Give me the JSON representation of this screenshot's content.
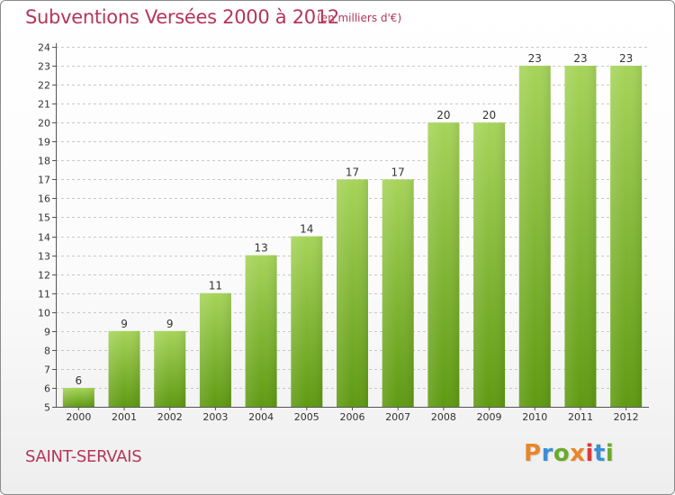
{
  "header": {
    "title": "Subventions Versées 2000 à 2012",
    "unit": "(en milliers d'€)"
  },
  "footer": {
    "commune": "SAINT-SERVAIS",
    "logo_text": "Proxiti",
    "logo_colors": [
      "#e8862a",
      "#3a8fd6",
      "#6aaa2a",
      "#e8862a",
      "#d93a3a",
      "#3a8fd6",
      "#6aaa2a"
    ]
  },
  "colors": {
    "text_accent": "#b5355a",
    "bar_top": "#a6d45a",
    "bar_bottom": "#5f9a12",
    "axis": "#555555",
    "grid": "#c8c8c8"
  },
  "chart_data": {
    "type": "bar",
    "title": "Subventions Versées 2000 à 2012",
    "subtitle": "(en milliers d'€)",
    "categories": [
      "2000",
      "2001",
      "2002",
      "2003",
      "2004",
      "2005",
      "2006",
      "2007",
      "2008",
      "2009",
      "2010",
      "2011",
      "2012"
    ],
    "values": [
      6,
      9,
      9,
      11,
      13,
      14,
      17,
      17,
      20,
      20,
      23,
      23,
      23
    ],
    "ylim": [
      5,
      24
    ],
    "yticks": [
      5,
      6,
      7,
      8,
      9,
      10,
      11,
      12,
      13,
      14,
      15,
      16,
      17,
      18,
      19,
      20,
      21,
      22,
      23,
      24
    ],
    "grid": "horizontal dashed",
    "data_labels": true,
    "legend": "none"
  }
}
